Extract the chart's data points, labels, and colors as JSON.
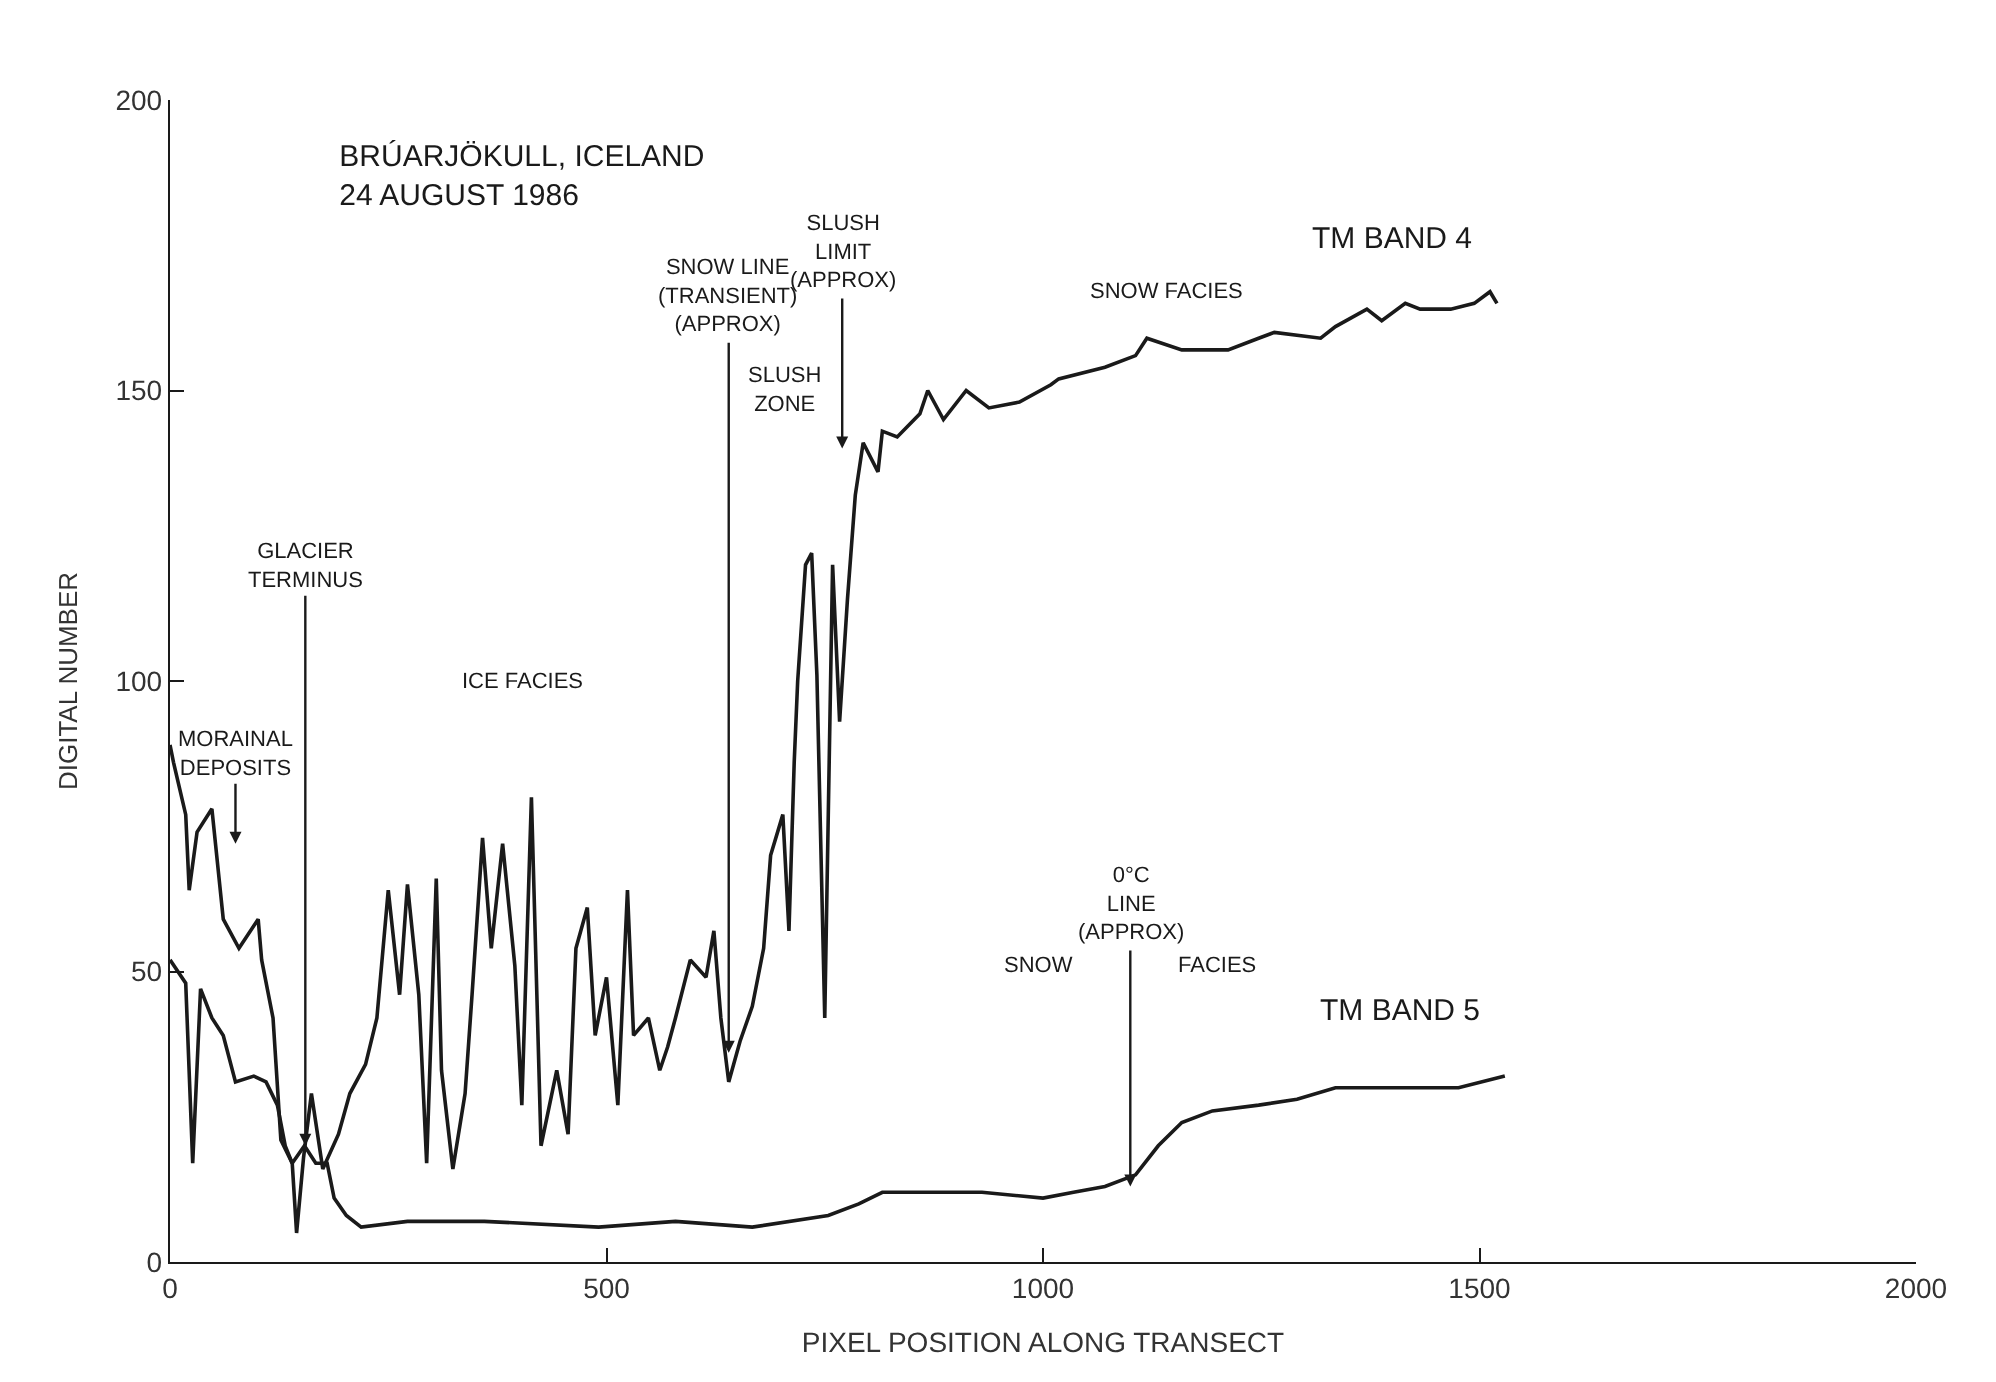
{
  "chart_data": {
    "type": "line",
    "title": "BRÚARJÖKULL, ICELAND\n24 AUGUST 1986",
    "xlabel": "PIXEL POSITION ALONG TRANSECT",
    "ylabel": "DIGITAL NUMBER",
    "xlim": [
      0,
      2000
    ],
    "xticks": [
      0,
      500,
      1000,
      1500,
      2000
    ],
    "ylim": [
      0,
      200
    ],
    "yticks": [
      0,
      50,
      100,
      150,
      200
    ],
    "legend": false,
    "marker": "none",
    "line_style": "solid",
    "series": [
      {
        "name": "TM BAND 4",
        "color": "#1a1a1a",
        "x": [
          0,
          4,
          18,
          22,
          31,
          48,
          61,
          79,
          101,
          105,
          118,
          127,
          140,
          145,
          153,
          162,
          175,
          193,
          206,
          224,
          237,
          250,
          263,
          272,
          285,
          294,
          305,
          311,
          324,
          338,
          346,
          358,
          368,
          381,
          395,
          403,
          414,
          425,
          443,
          456,
          465,
          478,
          487,
          500,
          513,
          524,
          531,
          548,
          561,
          570,
          579,
          596,
          614,
          623,
          631,
          640,
          653,
          667,
          680,
          688,
          702,
          709,
          715,
          719,
          728,
          735,
          741,
          750,
          759,
          767,
          776,
          785,
          794,
          811,
          816,
          833,
          859,
          868,
          886,
          912,
          938,
          973,
          1009,
          1018,
          1071,
          1106,
          1119,
          1159,
          1212,
          1247,
          1265,
          1318,
          1335,
          1371,
          1388,
          1415,
          1432,
          1467,
          1494,
          1512,
          1520
        ],
        "values": [
          89,
          86,
          77,
          64,
          74,
          78,
          59,
          54,
          59,
          52,
          42,
          21,
          17,
          5,
          18,
          29,
          16,
          22,
          29,
          34,
          42,
          64,
          46,
          65,
          46,
          17,
          66,
          33,
          16,
          29,
          46,
          73,
          54,
          72,
          51,
          27,
          80,
          20,
          33,
          22,
          54,
          61,
          39,
          49,
          27,
          64,
          39,
          42,
          33,
          37,
          42,
          52,
          49,
          57,
          42,
          31,
          38,
          44,
          54,
          70,
          77,
          57,
          86,
          100,
          120,
          122,
          101,
          42,
          120,
          93,
          114,
          132,
          141,
          136,
          143,
          142,
          146,
          150,
          145,
          150,
          147,
          148,
          151,
          152,
          154,
          156,
          159,
          157,
          157,
          159,
          160,
          159,
          161,
          164,
          162,
          165,
          164,
          164,
          165,
          167,
          165
        ]
      },
      {
        "name": "TM BAND 5",
        "color": "#1a1a1a",
        "x": [
          0,
          18,
          26,
          35,
          48,
          61,
          75,
          96,
          110,
          123,
          132,
          140,
          154,
          167,
          180,
          188,
          202,
          219,
          272,
          360,
          491,
          579,
          667,
          754,
          789,
          816,
          930,
          1000,
          1035,
          1071,
          1106,
          1132,
          1159,
          1194,
          1247,
          1291,
          1335,
          1423,
          1476,
          1529
        ],
        "values": [
          52,
          48,
          17,
          47,
          42,
          39,
          31,
          32,
          31,
          27,
          20,
          17,
          20,
          17,
          17,
          11,
          8,
          6,
          7,
          7,
          6,
          7,
          6,
          8,
          10,
          12,
          12,
          11,
          12,
          13,
          15,
          20,
          24,
          26,
          27,
          28,
          30,
          30,
          30,
          32
        ]
      }
    ],
    "annotations": [
      "MORAINAL\nDEPOSITS",
      {
        "text": "GLACIER\nTERMINUS",
        "x": 155,
        "y": 20
      },
      "ICE FACIES",
      "SNOW LINE\n(TRANSIENT)\n(APPROX)",
      "SLUSH\nZONE",
      "SLUSH\nLIMIT\n(APPROX)",
      "SNOW FACIES",
      {
        "text": "0°C\nLINE\n(APPROX)",
        "x": 1100,
        "y": 13
      },
      "SNOW",
      "FACIES"
    ]
  }
}
